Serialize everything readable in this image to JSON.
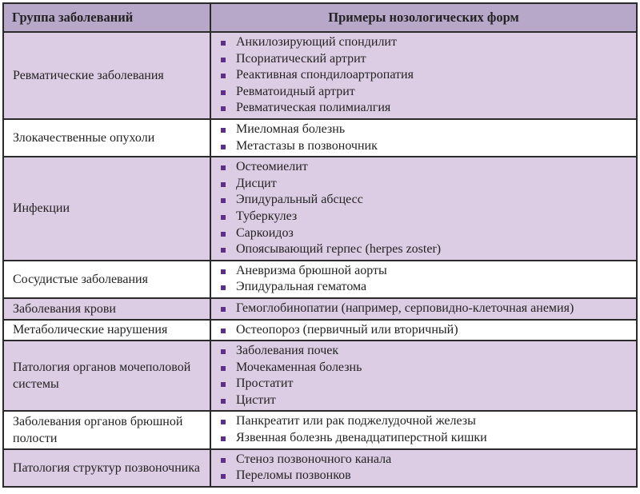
{
  "header": {
    "col1": "Группа заболеваний",
    "col2": "Примеры нозологических форм"
  },
  "colors": {
    "header_bg": "#b7a7c9",
    "shaded_row": "#ddcde4",
    "bullet": "#5d2f85"
  },
  "rows": [
    {
      "group": "Ревматические заболевания",
      "items": [
        "Анкилозирующий спондилит",
        "Псориатический артрит",
        "Реактивная спондилоартропатия",
        "Ревматоидный артрит",
        "Ревматическая полимиалгия"
      ]
    },
    {
      "group": "Злокачественные опухоли",
      "items": [
        "Миеломная болезнь",
        "Метастазы в позвоночник"
      ]
    },
    {
      "group": "Инфекции",
      "items": [
        "Остеомиелит",
        "Дисцит",
        "Эпидуральный абсцесс",
        "Туберкулез",
        "Саркоидоз",
        "Опоясывающий герпес (herpes zoster)"
      ]
    },
    {
      "group": "Сосудистые заболевания",
      "items": [
        "Аневризма брюшной аорты",
        "Эпидуральная гематома"
      ]
    },
    {
      "group": "Заболевания крови",
      "items": [
        "Гемоглобинопатии (например, серповидно-клеточная анемия)"
      ]
    },
    {
      "group": "Метаболические нарушения",
      "items": [
        "Остеопороз (первичный или вторичный)"
      ]
    },
    {
      "group": "Патология органов мочеполовой системы",
      "items": [
        "Заболевания почек",
        "Мочекаменная болезнь",
        "Простатит",
        "Цистит"
      ]
    },
    {
      "group": "Заболевания органов брюшной полости",
      "items": [
        "Панкреатит или рак поджелудочной железы",
        "Язвенная болезнь двенадцатиперстной кишки"
      ]
    },
    {
      "group": "Патология структур позвоночника",
      "items": [
        "Стеноз позвоночного канала",
        "Переломы позвонков"
      ]
    }
  ]
}
